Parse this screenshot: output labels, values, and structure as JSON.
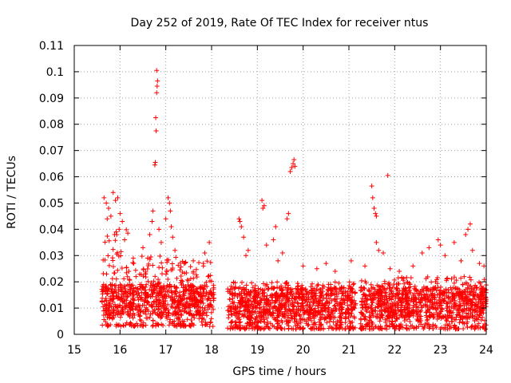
{
  "chart_data": {
    "type": "scatter",
    "title": "Day 252 of 2019, Rate Of TEC Index for receiver ntus",
    "xlabel": "GPS time / hours",
    "ylabel": "ROTI / TECUs",
    "xlim": [
      15,
      24
    ],
    "ylim": [
      0,
      0.11
    ],
    "xticks": [
      "15",
      "16",
      "17",
      "18",
      "19",
      "20",
      "21",
      "22",
      "23",
      "24"
    ],
    "yticks": [
      "0",
      "0.01",
      "0.02",
      "0.03",
      "0.04",
      "0.05",
      "0.06",
      "0.07",
      "0.08",
      "0.09",
      "0.1",
      "0.11"
    ],
    "grid": true,
    "legend": "none",
    "marker": "plus",
    "series_color": "#ff0000",
    "dense_segments": [
      {
        "x_start": 15.6,
        "x_end": 16.2,
        "y_low": 0.003,
        "y_high": 0.04
      },
      {
        "x_start": 16.2,
        "x_end": 17.35,
        "y_low": 0.003,
        "y_high": 0.03
      },
      {
        "x_start": 17.35,
        "x_end": 18.05,
        "y_low": 0.003,
        "y_high": 0.028
      },
      {
        "x_start": 18.35,
        "x_end": 21.15,
        "y_low": 0.002,
        "y_high": 0.02
      },
      {
        "x_start": 21.25,
        "x_end": 24.0,
        "y_low": 0.002,
        "y_high": 0.022
      }
    ],
    "outliers": [
      [
        15.65,
        0.052
      ],
      [
        15.7,
        0.05
      ],
      [
        15.75,
        0.048
      ],
      [
        15.8,
        0.045
      ],
      [
        15.85,
        0.054
      ],
      [
        15.9,
        0.051
      ],
      [
        15.95,
        0.052
      ],
      [
        16.0,
        0.046
      ],
      [
        16.05,
        0.043
      ],
      [
        15.72,
        0.044
      ],
      [
        15.88,
        0.038
      ],
      [
        15.98,
        0.04
      ],
      [
        16.1,
        0.036
      ],
      [
        16.3,
        0.027
      ],
      [
        16.5,
        0.033
      ],
      [
        16.65,
        0.038
      ],
      [
        16.7,
        0.043
      ],
      [
        16.72,
        0.047
      ],
      [
        16.76,
        0.0645
      ],
      [
        16.77,
        0.0655
      ],
      [
        16.78,
        0.0825
      ],
      [
        16.79,
        0.0775
      ],
      [
        16.8,
        0.092
      ],
      [
        16.81,
        0.0945
      ],
      [
        16.82,
        0.0965
      ],
      [
        16.8,
        0.1005
      ],
      [
        16.85,
        0.04
      ],
      [
        16.9,
        0.035
      ],
      [
        17.05,
        0.052
      ],
      [
        17.08,
        0.05
      ],
      [
        17.1,
        0.047
      ],
      [
        17.0,
        0.044
      ],
      [
        17.12,
        0.041
      ],
      [
        17.15,
        0.037
      ],
      [
        17.2,
        0.032
      ],
      [
        17.4,
        0.027
      ],
      [
        17.6,
        0.028
      ],
      [
        17.85,
        0.031
      ],
      [
        17.95,
        0.035
      ],
      [
        18.6,
        0.044
      ],
      [
        18.62,
        0.043
      ],
      [
        18.65,
        0.041
      ],
      [
        18.7,
        0.037
      ],
      [
        18.75,
        0.03
      ],
      [
        18.8,
        0.032
      ],
      [
        19.1,
        0.051
      ],
      [
        19.12,
        0.048
      ],
      [
        19.15,
        0.049
      ],
      [
        19.2,
        0.034
      ],
      [
        19.35,
        0.036
      ],
      [
        19.4,
        0.041
      ],
      [
        19.45,
        0.028
      ],
      [
        19.55,
        0.031
      ],
      [
        19.65,
        0.044
      ],
      [
        19.68,
        0.046
      ],
      [
        19.72,
        0.062
      ],
      [
        19.75,
        0.0635
      ],
      [
        19.78,
        0.065
      ],
      [
        19.8,
        0.0665
      ],
      [
        19.82,
        0.064
      ],
      [
        20.0,
        0.026
      ],
      [
        20.3,
        0.025
      ],
      [
        20.5,
        0.027
      ],
      [
        20.7,
        0.024
      ],
      [
        21.05,
        0.028
      ],
      [
        21.35,
        0.026
      ],
      [
        21.5,
        0.0565
      ],
      [
        21.52,
        0.052
      ],
      [
        21.55,
        0.048
      ],
      [
        21.58,
        0.046
      ],
      [
        21.6,
        0.045
      ],
      [
        21.6,
        0.035
      ],
      [
        21.65,
        0.032
      ],
      [
        21.75,
        0.031
      ],
      [
        21.85,
        0.0605
      ],
      [
        21.9,
        0.025
      ],
      [
        22.1,
        0.024
      ],
      [
        22.4,
        0.026
      ],
      [
        22.6,
        0.031
      ],
      [
        22.75,
        0.033
      ],
      [
        22.95,
        0.036
      ],
      [
        23.0,
        0.034
      ],
      [
        23.1,
        0.03
      ],
      [
        23.3,
        0.035
      ],
      [
        23.45,
        0.028
      ],
      [
        23.55,
        0.038
      ],
      [
        23.6,
        0.04
      ],
      [
        23.65,
        0.042
      ],
      [
        23.7,
        0.032
      ],
      [
        23.85,
        0.027
      ],
      [
        23.95,
        0.026
      ]
    ]
  }
}
